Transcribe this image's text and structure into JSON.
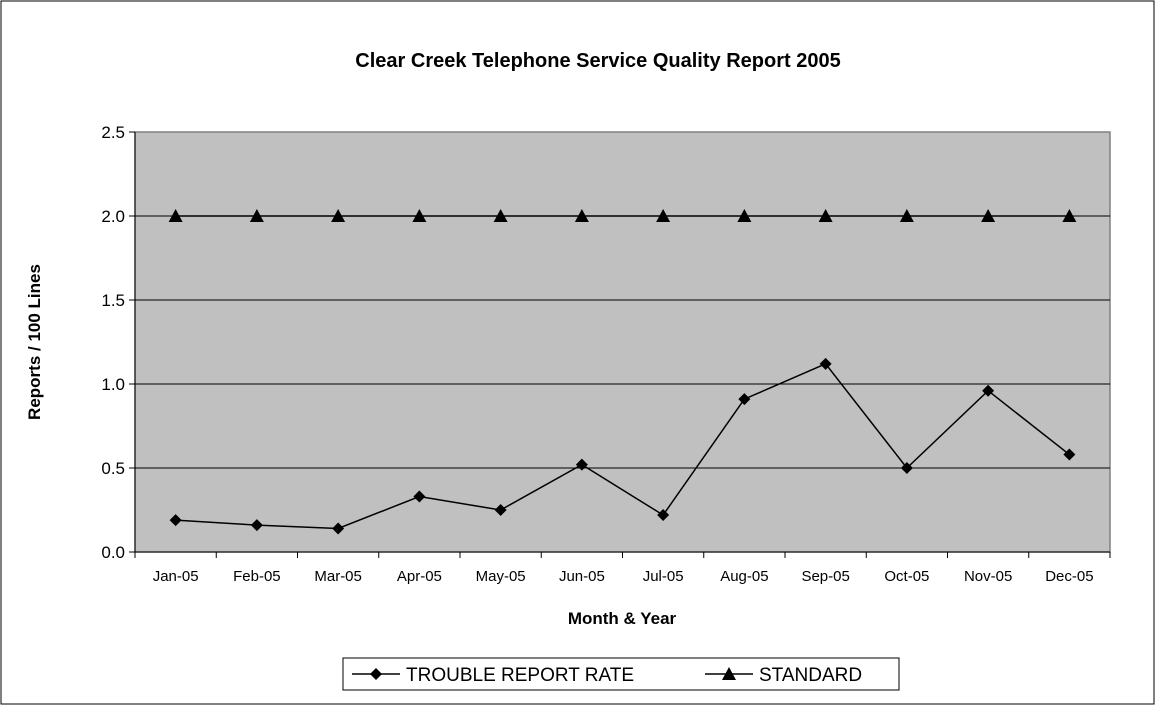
{
  "chart_data": {
    "type": "line",
    "title": "Clear Creek Telephone Service Quality Report 2005",
    "xlabel": "Month & Year",
    "ylabel": "Reports / 100 Lines",
    "categories": [
      "Jan-05",
      "Feb-05",
      "Mar-05",
      "Apr-05",
      "May-05",
      "Jun-05",
      "Jul-05",
      "Aug-05",
      "Sep-05",
      "Oct-05",
      "Nov-05",
      "Dec-05"
    ],
    "ylim": [
      0,
      2.5
    ],
    "yticks": [
      "0.0",
      "0.5",
      "1.0",
      "1.5",
      "2.0",
      "2.5"
    ],
    "grid": true,
    "plot_background": "#c0c0c0",
    "legend_position": "bottom",
    "series": [
      {
        "name": "TROUBLE REPORT RATE",
        "marker": "diamond",
        "values": [
          0.19,
          0.16,
          0.14,
          0.33,
          0.25,
          0.52,
          0.22,
          0.91,
          1.12,
          0.5,
          0.96,
          0.58
        ]
      },
      {
        "name": "STANDARD",
        "marker": "triangle",
        "values": [
          2.0,
          2.0,
          2.0,
          2.0,
          2.0,
          2.0,
          2.0,
          2.0,
          2.0,
          2.0,
          2.0,
          2.0
        ]
      }
    ]
  }
}
